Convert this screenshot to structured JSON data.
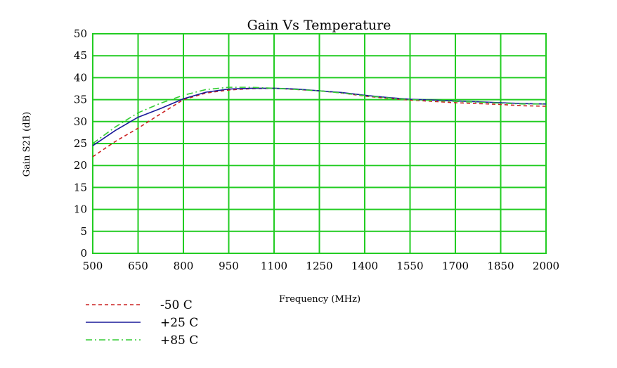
{
  "chart_data": {
    "type": "line",
    "title": "Gain Vs Temperature",
    "xlabel": "Frequency (MHz)",
    "ylabel": "Gain S21 (dB)",
    "xlim": [
      500,
      2000
    ],
    "ylim": [
      0,
      50
    ],
    "x_ticks": [
      "500",
      "650",
      "800",
      "950",
      "1100",
      "1250",
      "1400",
      "1550",
      "1700",
      "1850",
      "2000"
    ],
    "y_ticks": [
      "0",
      "5",
      "10",
      "15",
      "20",
      "25",
      "30",
      "35",
      "40",
      "45",
      "50"
    ],
    "grid": true,
    "grid_color": "#22cc22",
    "legend_position": "bottom-left",
    "series": [
      {
        "name": "-50 C",
        "color": "#cc2222",
        "dash": "dashed",
        "x": [
          500,
          575,
          650,
          725,
          800,
          875,
          950,
          1025,
          1100,
          1175,
          1250,
          1325,
          1400,
          1475,
          1550,
          1625,
          1700,
          1775,
          1850,
          1925,
          2000
        ],
        "y": [
          22.0,
          25.5,
          28.5,
          31.8,
          35.0,
          36.5,
          37.2,
          37.5,
          37.6,
          37.3,
          37.0,
          36.5,
          35.8,
          35.3,
          34.9,
          34.6,
          34.3,
          34.1,
          33.9,
          33.6,
          33.5
        ]
      },
      {
        "name": "+25 C",
        "color": "#1a1a99",
        "dash": "solid",
        "x": [
          500,
          575,
          650,
          725,
          800,
          875,
          950,
          1025,
          1100,
          1175,
          1250,
          1325,
          1400,
          1475,
          1550,
          1625,
          1700,
          1775,
          1850,
          1925,
          2000
        ],
        "y": [
          24.5,
          28.0,
          31.0,
          33.0,
          35.2,
          36.7,
          37.4,
          37.6,
          37.6,
          37.4,
          37.0,
          36.6,
          36.0,
          35.5,
          35.1,
          34.9,
          34.7,
          34.5,
          34.3,
          34.1,
          34.0
        ]
      },
      {
        "name": "+85 C",
        "color": "#33cc33",
        "dash": "dashdot",
        "x": [
          500,
          575,
          650,
          725,
          800,
          875,
          950,
          1025,
          1100,
          1175,
          1250,
          1325,
          1400,
          1475,
          1550,
          1625,
          1700,
          1775,
          1850,
          1925,
          2000
        ],
        "y": [
          25.0,
          28.8,
          32.0,
          34.2,
          36.0,
          37.3,
          37.8,
          37.8,
          37.6,
          37.3,
          37.0,
          36.5,
          35.9,
          35.4,
          35.0,
          34.8,
          34.6,
          34.4,
          34.2,
          34.0,
          34.0
        ]
      }
    ]
  }
}
